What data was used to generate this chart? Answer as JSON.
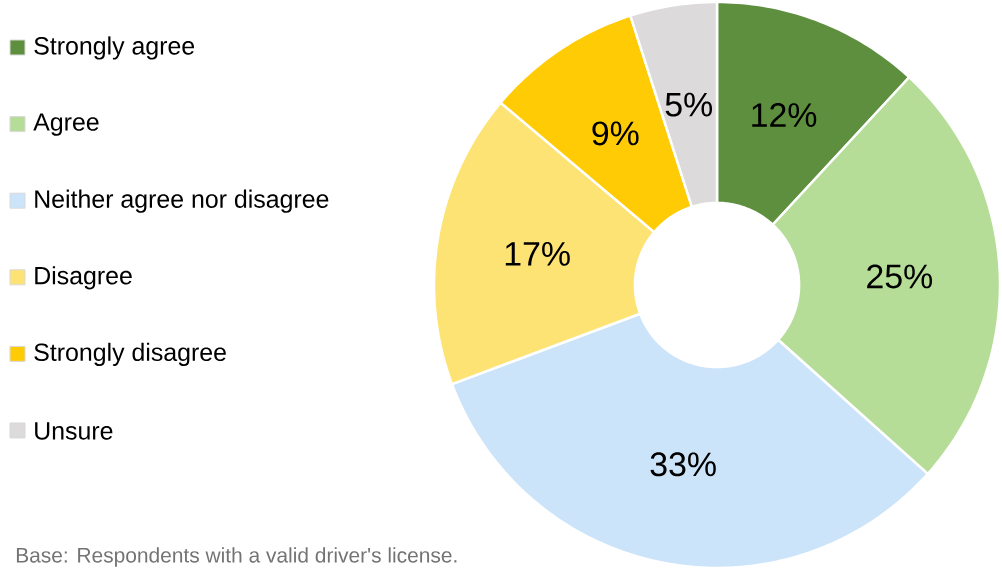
{
  "chart_data": {
    "type": "donut",
    "categories": [
      "Strongly agree",
      "Agree",
      "Neither agree nor disagree",
      "Disagree",
      "Strongly disagree",
      "Unsure"
    ],
    "values": [
      12,
      25,
      33,
      17,
      9,
      5
    ],
    "value_labels": [
      "12%",
      "25%",
      "33%",
      "17%",
      "9%",
      "5%"
    ],
    "colors": [
      "#5e8f3e",
      "#b5dd98",
      "#cce4f9",
      "#fde374",
      "#ffcb05",
      "#dcdadb"
    ],
    "legend": "left",
    "annotations": [
      "Base: Respondents with a valid driver's license."
    ]
  }
}
